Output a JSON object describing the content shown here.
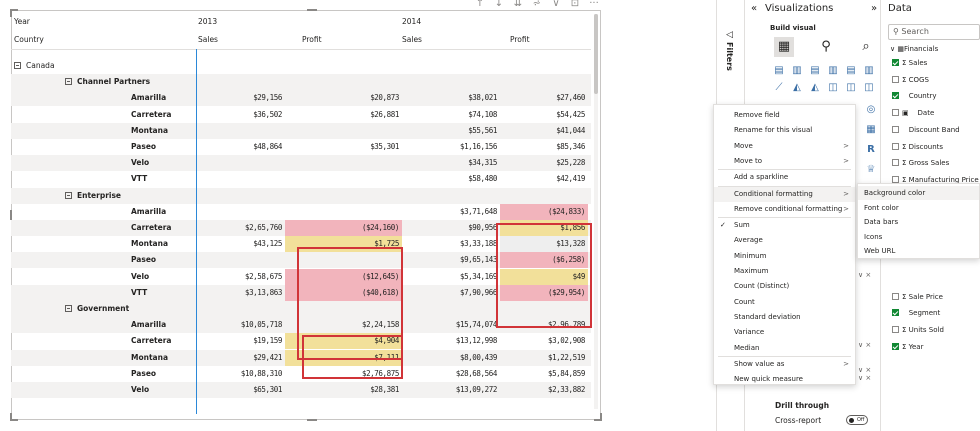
{
  "visual": {
    "toolbar_icons": [
      "arrow-up-icon",
      "arrow-down-icon",
      "double-arrow-down-icon",
      "expand-hierarchy-icon",
      "filter-icon",
      "focus-mode-icon",
      "more-options-icon"
    ],
    "toolbar_glyphs": [
      "↑",
      "↓",
      "⇊",
      "⩫",
      "⊽",
      "⊡",
      "···"
    ],
    "header": {
      "year_label": "Year",
      "year_2013": "2013",
      "year_2014": "2014",
      "country_label": "Country",
      "sales": "Sales",
      "profit": "Profit"
    },
    "groups": [
      {
        "label": "Canada",
        "level": 0
      },
      {
        "label": "Channel Partners",
        "level": 1
      },
      {
        "label": "Enterprise",
        "level": 1
      },
      {
        "label": "Government",
        "level": 1
      }
    ],
    "rows": [
      {
        "type": "country",
        "label": "Canada"
      },
      {
        "type": "segment",
        "label": "Channel Partners"
      },
      {
        "type": "product",
        "label": "Amarilla",
        "s13": "$29,156",
        "p13": "$20,873",
        "s14": "$38,021",
        "p14": "$27,460"
      },
      {
        "type": "product",
        "label": "Carretera",
        "s13": "$36,502",
        "p13": "$26,881",
        "s14": "$74,108",
        "p14": "$54,425"
      },
      {
        "type": "product",
        "label": "Montana",
        "s13": "",
        "p13": "",
        "s14": "$55,561",
        "p14": "$41,044"
      },
      {
        "type": "product",
        "label": "Paseo",
        "s13": "$48,864",
        "p13": "$35,301",
        "s14": "$1,16,156",
        "p14": "$85,346"
      },
      {
        "type": "product",
        "label": "Velo",
        "s13": "",
        "p13": "",
        "s14": "$34,315",
        "p14": "$25,228"
      },
      {
        "type": "product",
        "label": "VTT",
        "s13": "",
        "p13": "",
        "s14": "$58,480",
        "p14": "$42,419"
      },
      {
        "type": "segment",
        "label": "Enterprise"
      },
      {
        "type": "product",
        "label": "Amarilla",
        "s13": "",
        "p13": "",
        "s14": "$3,71,648",
        "p14": "($24,833)",
        "p14c": "red"
      },
      {
        "type": "product",
        "label": "Carretera",
        "s13": "$2,65,760",
        "p13": "($24,160)",
        "p13c": "red",
        "s14": "$90,956",
        "p14": "$1,856",
        "p14c": "yellow"
      },
      {
        "type": "product",
        "label": "Montana",
        "s13": "$43,125",
        "p13": "$1,725",
        "p13c": "yellow",
        "s14": "$3,33,188",
        "p14": "$13,328",
        "p14c": "lgrey"
      },
      {
        "type": "product",
        "label": "Paseo",
        "s13": "",
        "p13": "",
        "s14": "$9,65,143",
        "p14": "($6,258)",
        "p14c": "red"
      },
      {
        "type": "product",
        "label": "Velo",
        "s13": "$2,58,675",
        "p13": "($12,645)",
        "p13c": "red",
        "s14": "$5,34,169",
        "p14": "$49",
        "p14c": "yellow"
      },
      {
        "type": "product",
        "label": "VTT",
        "s13": "$3,13,863",
        "p13": "($40,618)",
        "p13c": "red",
        "s14": "$7,90,966",
        "p14": "($29,954)",
        "p14c": "red"
      },
      {
        "type": "segment",
        "label": "Government"
      },
      {
        "type": "product",
        "label": "Amarilla",
        "s13": "$10,05,718",
        "p13": "$2,24,158",
        "s14": "$15,74,074",
        "p14": "$2,96,789"
      },
      {
        "type": "product",
        "label": "Carretera",
        "s13": "$19,159",
        "p13": "$4,904",
        "p13c": "yellow",
        "s14": "$13,12,998",
        "p14": "$3,02,908"
      },
      {
        "type": "product",
        "label": "Montana",
        "s13": "$29,421",
        "p13": "$7,111",
        "p13c": "yellow",
        "s14": "$8,00,439",
        "p14": "$1,22,519"
      },
      {
        "type": "product",
        "label": "Paseo",
        "s13": "$10,88,310",
        "p13": "$2,76,875",
        "s14": "$28,68,564",
        "p14": "$5,84,859"
      },
      {
        "type": "product",
        "label": "Velo",
        "s13": "$65,301",
        "p13": "$28,381",
        "s14": "$13,09,272",
        "p14": "$2,33,882"
      }
    ]
  },
  "colors": {
    "red_cell": "#f2b4bc",
    "yellow_cell": "#f2e09a",
    "highlight_border": "#d13438",
    "column_divider": "#2b88d8"
  },
  "filters_pane": {
    "label": "Filters",
    "icon": "filter-pane-icon"
  },
  "visualizations": {
    "title": "Visualizations",
    "collapse_icon": "double-chevron-left-icon",
    "expand_icon": "double-chevron-right-icon",
    "build_visual": "Build visual",
    "drill_through": "Drill through",
    "cross_report": "Cross-report",
    "toggle_state": "Off"
  },
  "data_pane": {
    "title": "Data",
    "search_placeholder": "Search",
    "table": "Financials",
    "fields": [
      {
        "label": "Sales",
        "sigma": true,
        "checked": true
      },
      {
        "label": "COGS",
        "sigma": true,
        "checked": false
      },
      {
        "label": "Country",
        "sigma": false,
        "checked": true
      },
      {
        "label": "Date",
        "sigma": false,
        "checked": false,
        "calendar": true
      },
      {
        "label": "Discount Band",
        "sigma": false,
        "checked": false
      },
      {
        "label": "Discounts",
        "sigma": true,
        "checked": false
      },
      {
        "label": "Gross Sales",
        "sigma": true,
        "checked": false
      },
      {
        "label": "Manufacturing Price",
        "sigma": true,
        "checked": false
      },
      {
        "label": "Sale Price",
        "sigma": true,
        "checked": false
      },
      {
        "label": "Segment",
        "sigma": false,
        "checked": true
      },
      {
        "label": "Units Sold",
        "sigma": true,
        "checked": false
      },
      {
        "label": "Year",
        "sigma": true,
        "checked": true
      }
    ]
  },
  "context_menu": {
    "items": [
      {
        "label": "Remove field"
      },
      {
        "label": "Rename for this visual"
      },
      {
        "label": "Move",
        "submenu": true
      },
      {
        "label": "Move to",
        "submenu": true
      },
      {
        "label": "Add a sparkline"
      },
      {
        "label": "Conditional formatting",
        "submenu": true,
        "hover": true
      },
      {
        "label": "Remove conditional formatting",
        "submenu": true
      },
      {
        "label": "Sum",
        "checked": true
      },
      {
        "label": "Average"
      },
      {
        "label": "Minimum"
      },
      {
        "label": "Maximum"
      },
      {
        "label": "Count (Distinct)"
      },
      {
        "label": "Count"
      },
      {
        "label": "Standard deviation"
      },
      {
        "label": "Variance"
      },
      {
        "label": "Median"
      },
      {
        "label": "Show value as",
        "submenu": true
      },
      {
        "label": "New quick measure"
      }
    ],
    "submenu": [
      "Background color",
      "Font color",
      "Data bars",
      "Icons",
      "Web URL"
    ],
    "check_glyph": "✓",
    "arrow_glyph": ">"
  }
}
